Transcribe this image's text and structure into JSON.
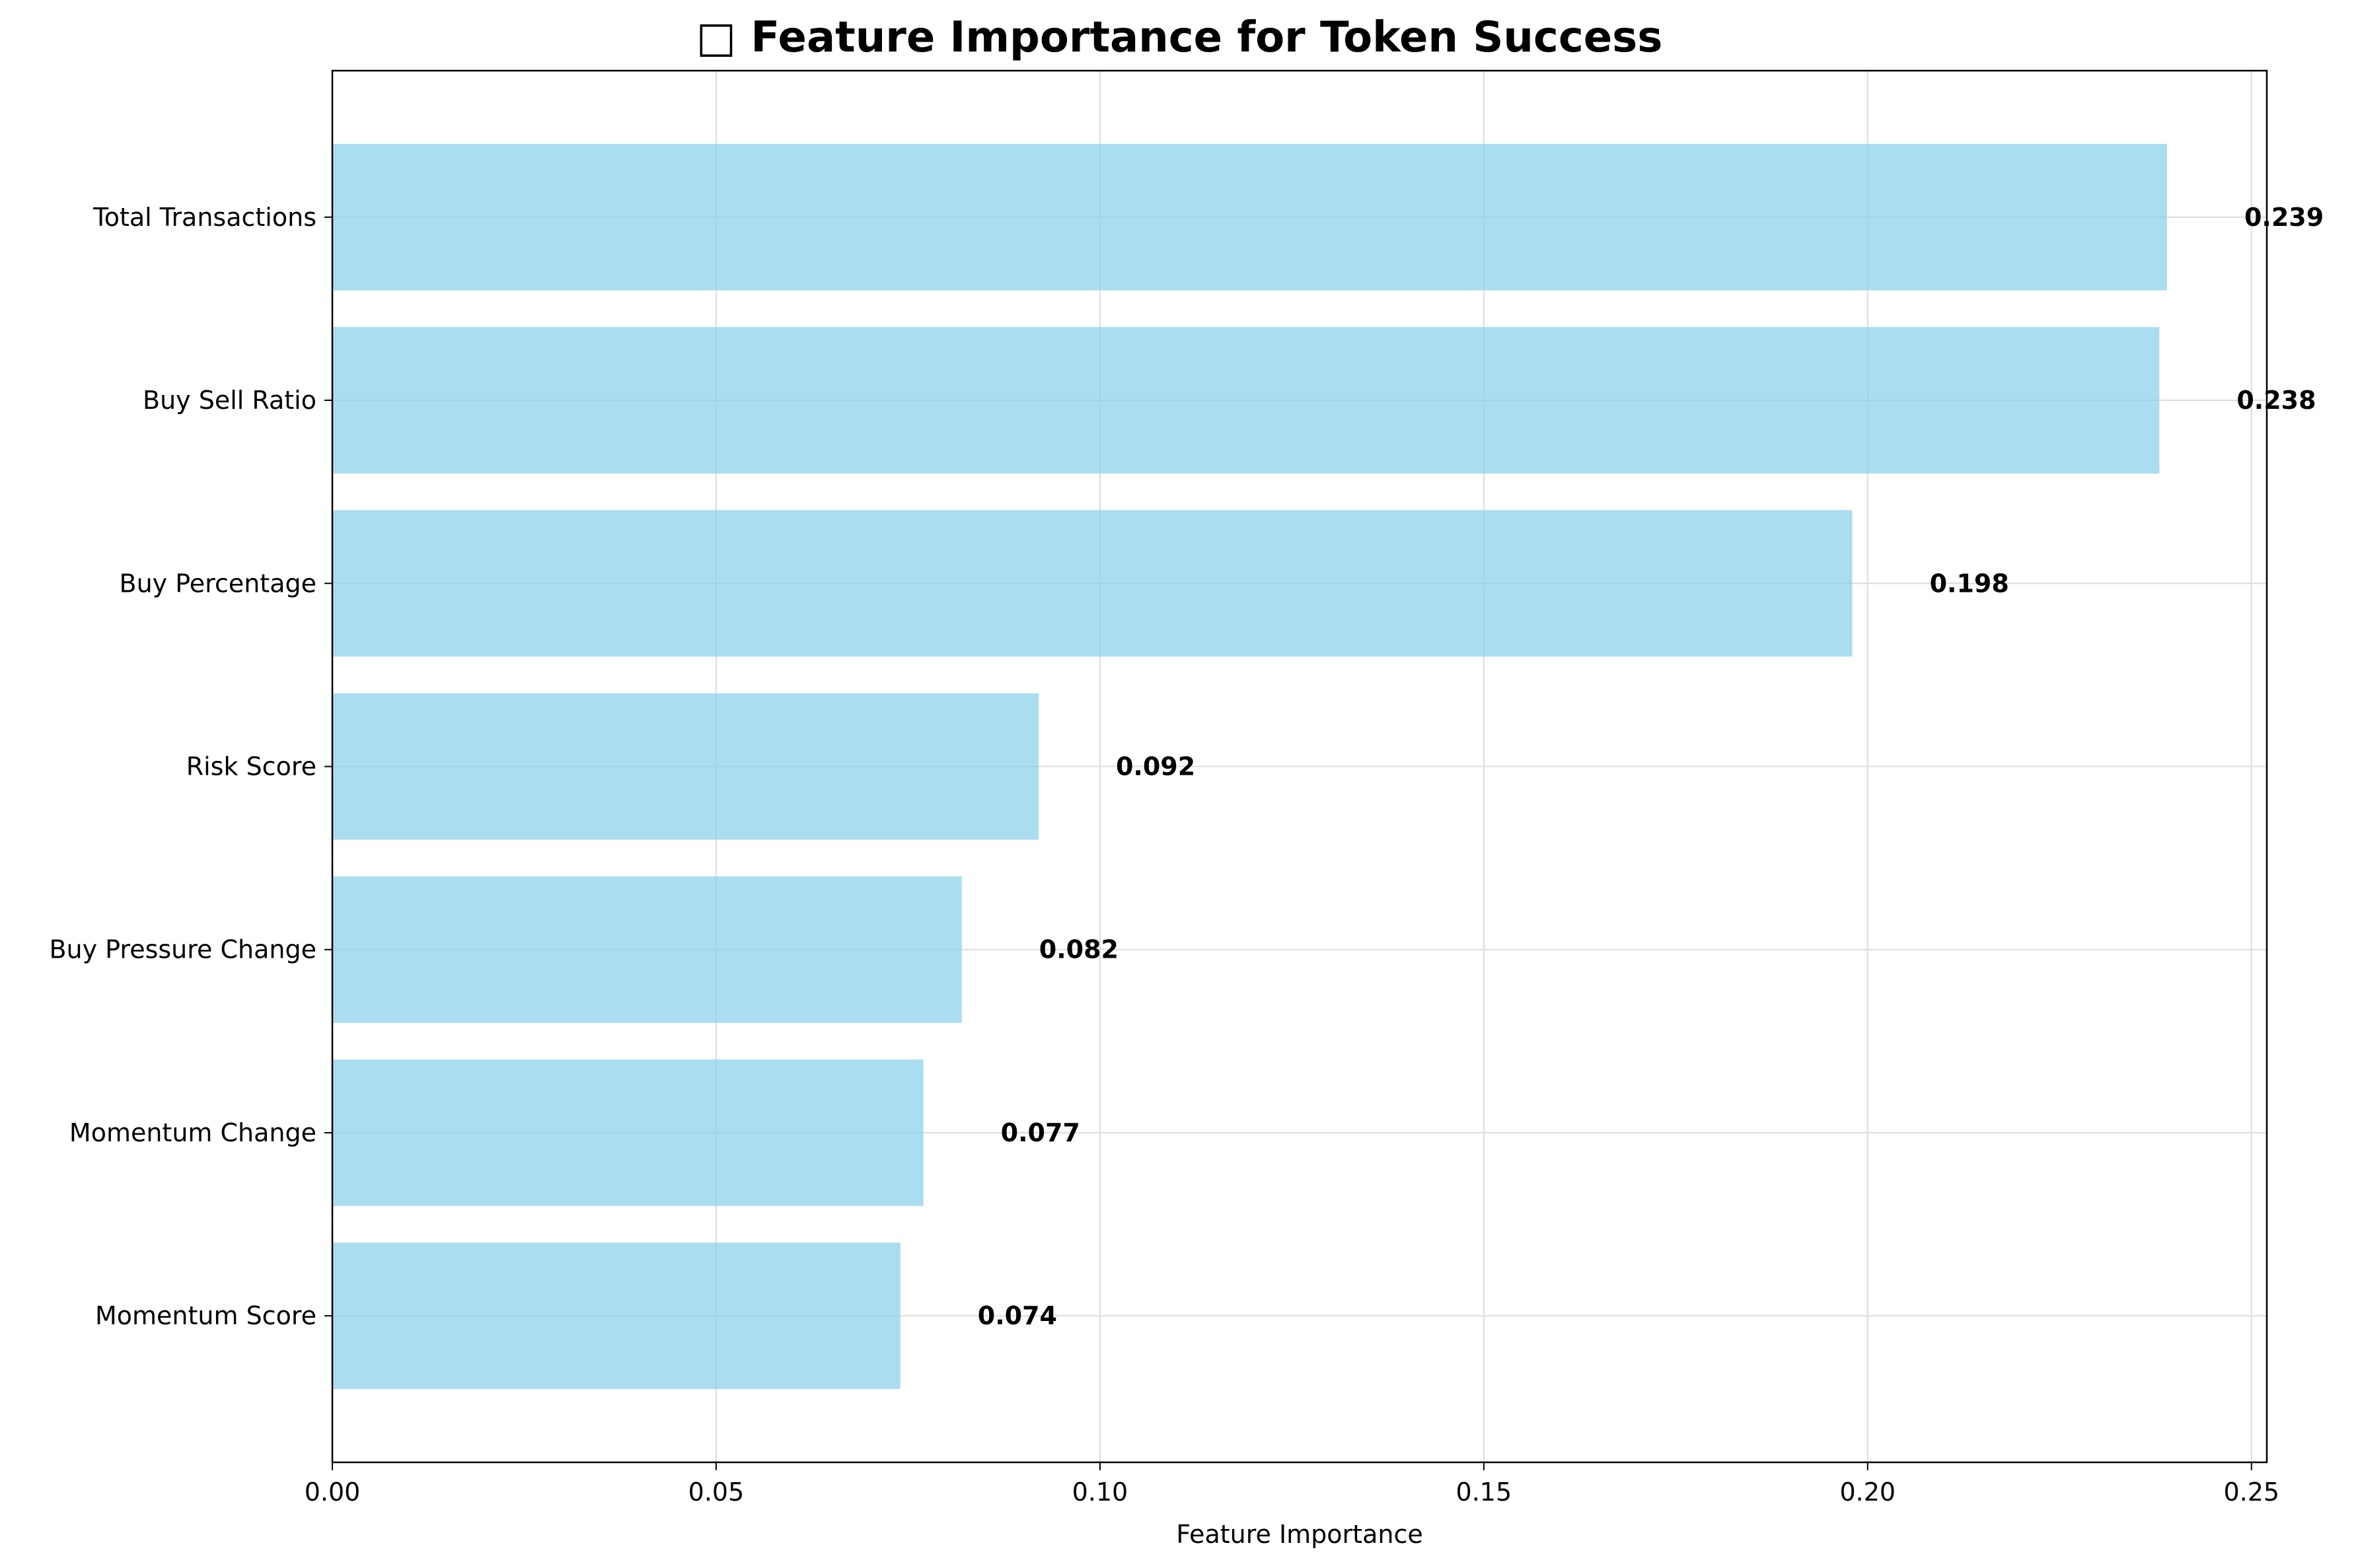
{
  "chart_data": {
    "type": "bar",
    "orientation": "horizontal",
    "title": "□ Feature Importance for Token Success",
    "xlabel": "Feature Importance",
    "ylabel": "",
    "categories": [
      "Total Transactions",
      "Buy Sell Ratio",
      "Buy Percentage",
      "Risk Score",
      "Buy Pressure Change",
      "Momentum Change",
      "Momentum Score"
    ],
    "values": [
      0.239,
      0.238,
      0.198,
      0.092,
      0.082,
      0.077,
      0.074
    ],
    "value_labels": [
      "0.239",
      "0.238",
      "0.198",
      "0.092",
      "0.082",
      "0.077",
      "0.074"
    ],
    "xlim": [
      0,
      0.252
    ],
    "xticks": [
      0.0,
      0.05,
      0.1,
      0.15,
      0.2,
      0.25
    ],
    "xtick_labels": [
      "0.00",
      "0.05",
      "0.10",
      "0.15",
      "0.20",
      "0.25"
    ],
    "grid": true,
    "bar_color": "#87CEEB",
    "legend": false
  }
}
